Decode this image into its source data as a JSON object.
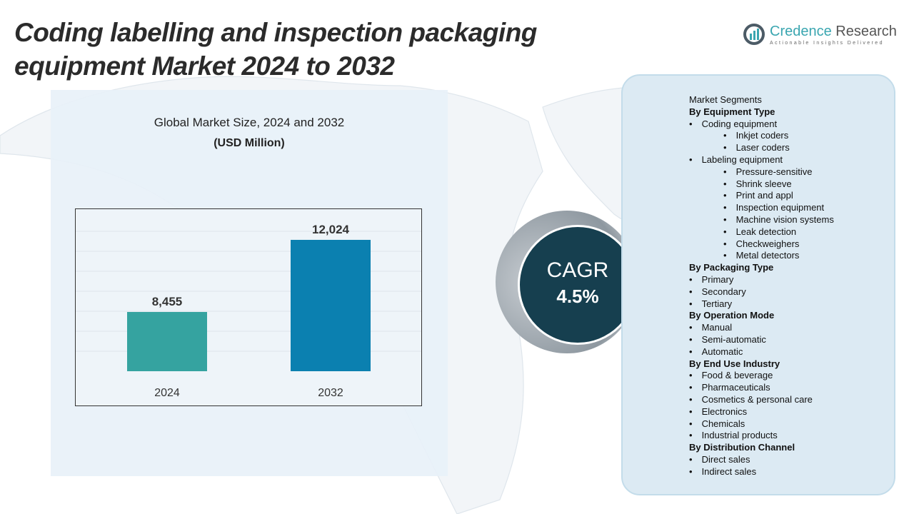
{
  "title": "Coding labelling and inspection packaging equipment Market 2024 to 2032",
  "logo": {
    "name_a": "Credence",
    "name_b": " Research",
    "tagline": "Actionable Insights Delivered"
  },
  "chart_data": {
    "type": "bar",
    "title": "Global Market Size, 2024 and 2032",
    "subtitle": "(USD Million)",
    "categories": [
      "2024",
      "2032"
    ],
    "values": [
      8455,
      12024
    ],
    "value_labels": [
      "8,455",
      "12,024"
    ],
    "colors": [
      "#35a3a0",
      "#0b80b0"
    ],
    "grid": true
  },
  "cagr": {
    "label": "CAGR",
    "value": "4.5%"
  },
  "segments": [
    {
      "text": "Market Segments",
      "level": 0
    },
    {
      "text": "By Equipment Type",
      "level": 0,
      "bold": true
    },
    {
      "text": "Coding equipment",
      "level": 1
    },
    {
      "text": "Inkjet coders",
      "level": 2
    },
    {
      "text": "Laser coders",
      "level": 2
    },
    {
      "text": "Labeling equipment",
      "level": 1
    },
    {
      "text": "Pressure-sensitive",
      "level": 2
    },
    {
      "text": "Shrink sleeve",
      "level": 2
    },
    {
      "text": "Print and appl",
      "level": 2
    },
    {
      "text": "Inspection equipment",
      "level": 2
    },
    {
      "text": "Machine vision systems",
      "level": 2
    },
    {
      "text": "Leak detection",
      "level": 2
    },
    {
      "text": "Checkweighers",
      "level": 2
    },
    {
      "text": "Metal detectors",
      "level": 2
    },
    {
      "text": "By Packaging Type",
      "level": 0,
      "bold": true
    },
    {
      "text": "Primary",
      "level": 1
    },
    {
      "text": "Secondary",
      "level": 1
    },
    {
      "text": "Tertiary",
      "level": 1
    },
    {
      "text": "By Operation Mode",
      "level": 0,
      "bold": true
    },
    {
      "text": "Manual",
      "level": 1
    },
    {
      "text": "Semi-automatic",
      "level": 1
    },
    {
      "text": "Automatic",
      "level": 1
    },
    {
      "text": "By End Use Industry",
      "level": 0,
      "bold": true
    },
    {
      "text": "Food & beverage",
      "level": 1
    },
    {
      "text": "Pharmaceuticals",
      "level": 1
    },
    {
      "text": "Cosmetics & personal care",
      "level": 1
    },
    {
      "text": "Electronics",
      "level": 1
    },
    {
      "text": "Chemicals",
      "level": 1
    },
    {
      "text": "Industrial products",
      "level": 1
    },
    {
      "text": "By Distribution Channel",
      "level": 0,
      "bold": true
    },
    {
      "text": "Direct sales",
      "level": 1
    },
    {
      "text": "Indirect sales",
      "level": 1
    }
  ]
}
